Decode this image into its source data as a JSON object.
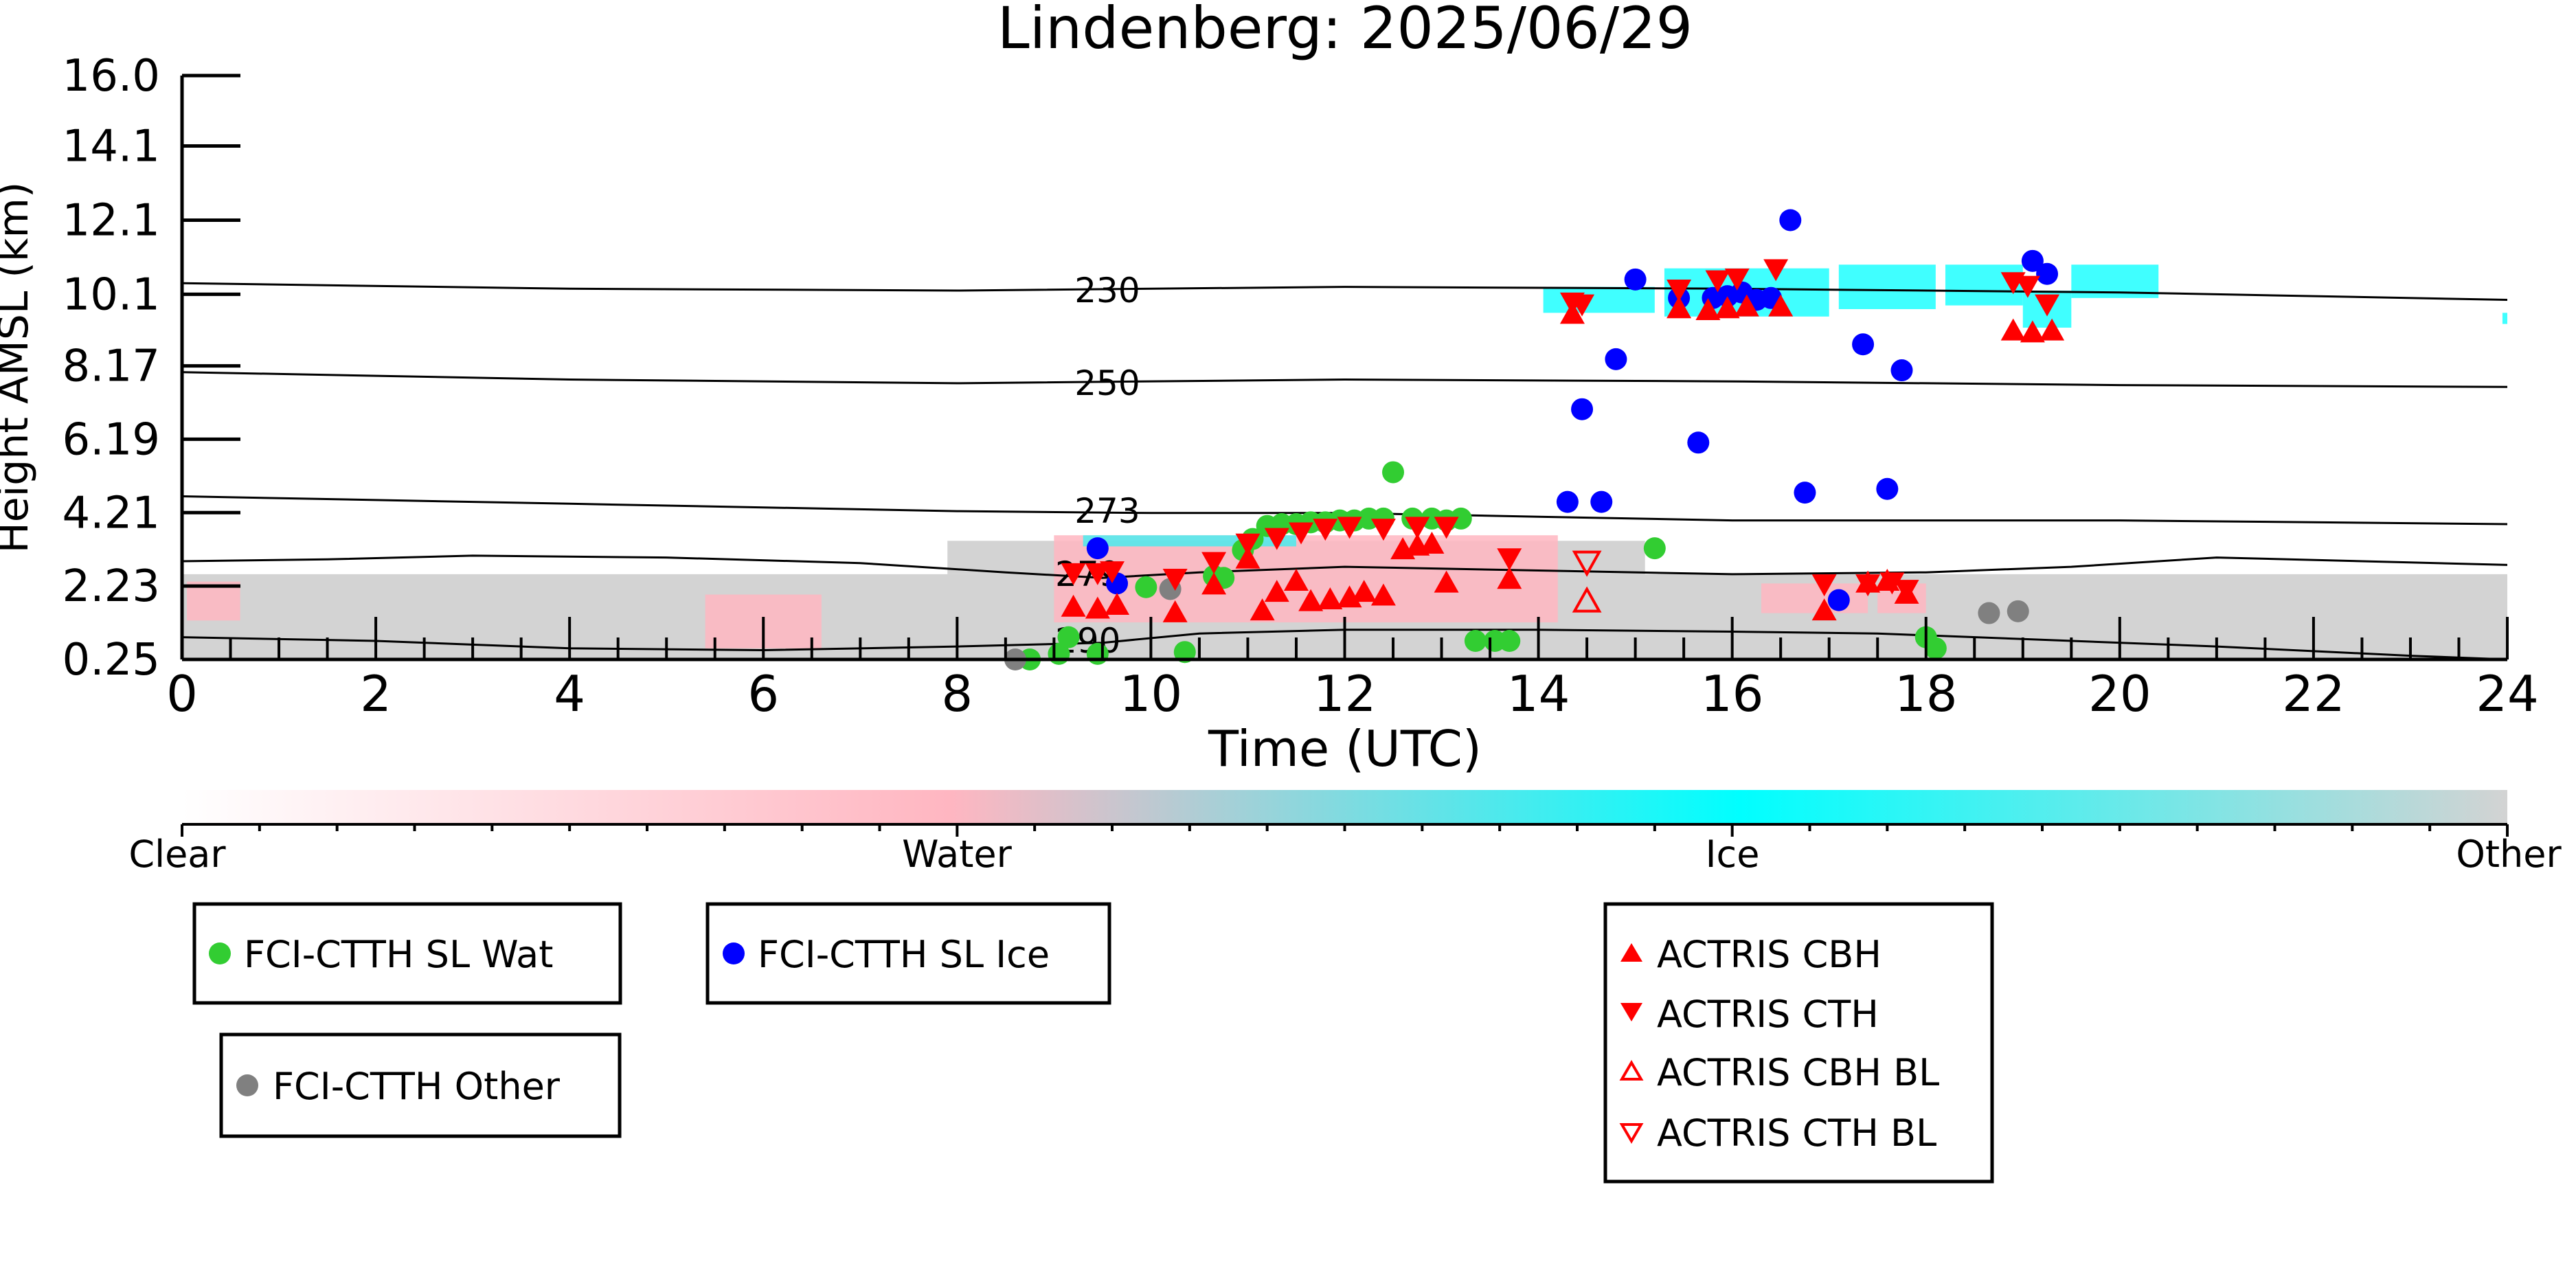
{
  "chart_data": {
    "type": "scatter",
    "title": "Lindenberg: 2025/06/29",
    "xlabel": "Time (UTC)",
    "ylabel": "Height AMSL (km)",
    "xlim": [
      0,
      24
    ],
    "ylim": [
      0.25,
      16.0
    ],
    "x_ticks": [
      "0",
      "2",
      "4",
      "6",
      "8",
      "10",
      "12",
      "14",
      "16",
      "18",
      "20",
      "22",
      "24"
    ],
    "y_ticks": [
      "0.25",
      "2.23",
      "4.21",
      "6.19",
      "8.17",
      "10.1",
      "12.1",
      "14.1",
      "16.0"
    ],
    "grid": false,
    "colors": {
      "clear": "#ffffff",
      "water": "#ffb6c1",
      "ice": "#00ffff",
      "other": "#d3d3d3",
      "fci_wat": "#32cd32",
      "fci_ice": "#0000ff",
      "fci_other": "#808080",
      "actris": "#ff0000"
    },
    "colorbar": {
      "labels": [
        "Clear",
        "Water",
        "Ice",
        "Other"
      ]
    },
    "isotherms": [
      {
        "label": "230",
        "x": [
          0,
          4,
          8,
          12,
          16,
          20,
          24
        ],
        "y": [
          10.4,
          10.25,
          10.2,
          10.3,
          10.25,
          10.15,
          9.95
        ]
      },
      {
        "label": "250",
        "x": [
          0,
          4,
          8,
          12,
          16,
          20,
          24
        ],
        "y": [
          8.0,
          7.8,
          7.7,
          7.8,
          7.75,
          7.65,
          7.6
        ]
      },
      {
        "label": "273",
        "x": [
          0,
          4,
          8,
          10,
          12,
          14,
          16,
          18,
          20,
          24
        ],
        "y": [
          4.65,
          4.45,
          4.25,
          4.2,
          4.2,
          4.1,
          4.0,
          4.0,
          4.0,
          3.9
        ]
      },
      {
        "label": "279",
        "x": [
          0,
          1.5,
          3,
          5,
          7,
          8.5,
          9.5,
          10.5,
          12,
          14,
          16,
          18,
          19.5,
          21,
          24
        ],
        "y": [
          2.9,
          2.95,
          3.05,
          3.0,
          2.85,
          2.6,
          2.45,
          2.6,
          2.75,
          2.65,
          2.55,
          2.6,
          2.75,
          3.0,
          2.8
        ]
      },
      {
        "label": "290",
        "x": [
          0,
          2,
          4,
          6,
          8,
          9.5,
          10.5,
          12,
          14,
          16,
          17.5,
          19,
          21,
          23,
          24
        ],
        "y": [
          0.85,
          0.75,
          0.55,
          0.5,
          0.6,
          0.7,
          0.95,
          1.05,
          1.05,
          1.0,
          0.95,
          0.8,
          0.6,
          0.35,
          0.25
        ]
      }
    ],
    "series": [
      {
        "name": "FCI-CTTH SL Wat",
        "marker": "circle-filled",
        "color": "#32cd32",
        "x": [
          8.75,
          9.05,
          9.15,
          9.45,
          9.95,
          10.35,
          10.65,
          10.75,
          10.95,
          11.05,
          11.2,
          11.35,
          11.5,
          11.65,
          11.8,
          11.95,
          12.1,
          12.25,
          12.4,
          12.5,
          12.7,
          12.9,
          13.05,
          13.2,
          13.35,
          13.55,
          13.7,
          15.2,
          18.0,
          18.1
        ],
        "y": [
          0.25,
          0.4,
          0.85,
          0.4,
          2.2,
          0.45,
          2.5,
          2.45,
          3.2,
          3.5,
          3.85,
          3.9,
          3.9,
          3.95,
          3.95,
          4.0,
          4.0,
          4.05,
          4.05,
          5.3,
          4.05,
          4.05,
          4.0,
          4.05,
          0.75,
          0.75,
          0.75,
          3.25,
          0.85,
          0.55
        ]
      },
      {
        "name": "FCI-CTTH SL Ice",
        "marker": "circle-filled",
        "color": "#0000ff",
        "x": [
          9.45,
          9.65,
          14.3,
          14.45,
          14.65,
          14.8,
          15.0,
          15.45,
          15.65,
          15.8,
          15.95,
          16.1,
          16.25,
          16.4,
          16.6,
          16.75,
          17.1,
          17.35,
          17.6,
          17.75,
          19.1,
          19.25
        ],
        "y": [
          3.25,
          2.3,
          4.5,
          7.0,
          4.5,
          8.35,
          10.5,
          10.0,
          6.1,
          10.0,
          10.05,
          10.15,
          9.95,
          10.0,
          12.1,
          4.75,
          1.85,
          8.75,
          4.85,
          8.05,
          11.0,
          10.65
        ]
      },
      {
        "name": "FCI-CTTH Other",
        "marker": "circle-filled",
        "color": "#808080",
        "x": [
          8.6,
          10.2,
          18.65,
          18.95
        ],
        "y": [
          0.25,
          2.15,
          1.5,
          1.55
        ]
      },
      {
        "name": "ACTRIS CBH",
        "marker": "triangle-up-filled",
        "color": "#ff0000",
        "x": [
          9.2,
          9.45,
          9.65,
          10.25,
          10.65,
          11.0,
          11.15,
          11.3,
          11.5,
          11.65,
          11.85,
          12.05,
          12.2,
          12.4,
          12.6,
          12.75,
          12.9,
          13.05,
          13.7,
          14.35,
          15.45,
          15.75,
          15.95,
          16.15,
          16.5,
          16.95,
          17.4,
          17.6,
          17.8,
          18.9,
          19.1,
          19.3
        ],
        "y": [
          1.7,
          1.65,
          1.75,
          1.55,
          2.3,
          3.0,
          1.6,
          2.1,
          2.4,
          1.85,
          1.9,
          1.95,
          2.1,
          2.0,
          3.25,
          3.35,
          3.4,
          2.35,
          2.45,
          9.6,
          9.75,
          9.7,
          9.75,
          9.8,
          9.8,
          1.6,
          2.35,
          2.4,
          2.05,
          9.15,
          9.1,
          9.15
        ]
      },
      {
        "name": "ACTRIS CTH",
        "marker": "triangle-down-filled",
        "color": "#ff0000",
        "x": [
          9.2,
          9.45,
          9.6,
          10.25,
          10.65,
          11.0,
          11.3,
          11.55,
          11.8,
          12.05,
          12.4,
          12.75,
          13.05,
          13.7,
          14.35,
          14.45,
          15.45,
          15.85,
          16.05,
          16.45,
          16.95,
          17.4,
          17.65,
          17.8,
          18.9,
          19.05,
          19.25
        ],
        "y": [
          2.55,
          2.55,
          2.6,
          2.4,
          2.85,
          3.35,
          3.5,
          3.65,
          3.75,
          3.8,
          3.75,
          3.8,
          3.8,
          2.95,
          9.85,
          9.8,
          10.2,
          10.45,
          10.5,
          10.75,
          2.25,
          2.25,
          2.3,
          2.1,
          10.4,
          10.3,
          9.8
        ]
      },
      {
        "name": "ACTRIS CBH BL",
        "marker": "triangle-up-open",
        "color": "#ff0000",
        "x": [
          14.5
        ],
        "y": [
          1.85
        ]
      },
      {
        "name": "ACTRIS CTH BL",
        "marker": "triangle-down-open",
        "color": "#ff0000",
        "x": [
          14.5
        ],
        "y": [
          2.85
        ]
      }
    ],
    "legends": [
      {
        "items": [
          "FCI-CTTH SL Wat"
        ]
      },
      {
        "items": [
          "FCI-CTTH SL Ice"
        ]
      },
      {
        "items": [
          "FCI-CTTH Other"
        ]
      },
      {
        "items": [
          "ACTRIS CBH",
          "ACTRIS CTH",
          "ACTRIS CBH BL",
          "ACTRIS CTH BL"
        ]
      }
    ]
  }
}
